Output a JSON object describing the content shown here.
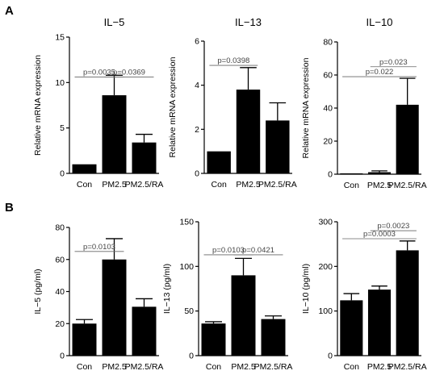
{
  "panel_letters": [
    "A",
    "B"
  ],
  "chart_data": [
    {
      "type": "bar",
      "title": "IL−5",
      "ylabel": "Relative mRNA expression",
      "categories": [
        "Con",
        "PM2.5",
        "PM2.5/RA"
      ],
      "values": [
        1.0,
        8.6,
        3.4
      ],
      "errors": [
        0.0,
        2.2,
        0.9
      ],
      "ylim": [
        0,
        15
      ],
      "yticks": [
        "0",
        "5",
        "10",
        "15"
      ],
      "annotations": [
        {
          "text": "p=0.0035",
          "from": "Con",
          "to": "PM2.5",
          "level": 10.6
        },
        {
          "text": "p=0.0369",
          "from": "PM2.5",
          "to": "PM2.5/RA",
          "level": 10.6
        }
      ]
    },
    {
      "type": "bar",
      "title": "IL−13",
      "ylabel": "Relative mRNA expression",
      "categories": [
        "Con",
        "PM2.5",
        "PM2.5/RA"
      ],
      "values": [
        1.0,
        3.8,
        2.4
      ],
      "errors": [
        0.0,
        1.0,
        0.8
      ],
      "ylim": [
        0,
        6
      ],
      "yticks": [
        "0",
        "2",
        "4",
        "6"
      ],
      "annotations": [
        {
          "text": "p=0.0398",
          "from": "Con",
          "to": "PM2.5",
          "level": 4.9
        }
      ]
    },
    {
      "type": "bar",
      "title": "IL−10",
      "ylabel": "Relative mRNA expression",
      "categories": [
        "Con",
        "PM2.5",
        "PM2.5/RA"
      ],
      "values": [
        0.5,
        1.2,
        42
      ],
      "errors": [
        0.0,
        0.8,
        16
      ],
      "ylim": [
        0,
        80
      ],
      "yticks": [
        "0",
        "20",
        "40",
        "60",
        "80"
      ],
      "annotations": [
        {
          "text": "p=0.022",
          "from": "Con",
          "to": "PM2.5/RA",
          "level": 59
        },
        {
          "text": "p=0.023",
          "from": "PM2.5",
          "to": "PM2.5/RA",
          "level": 65
        }
      ]
    },
    {
      "type": "bar",
      "title": "",
      "ylabel": "IL−5 (pg/ml)",
      "categories": [
        "Con",
        "PM2.5",
        "PM2.5/RA"
      ],
      "values": [
        20,
        60,
        30.5
      ],
      "errors": [
        2.5,
        13,
        5
      ],
      "ylim": [
        0,
        80
      ],
      "yticks": [
        "0",
        "20",
        "40",
        "60",
        "80"
      ],
      "annotations": [
        {
          "text": "p=0.0103",
          "from": "Con",
          "to": "PM2.5",
          "level": 65
        }
      ]
    },
    {
      "type": "bar",
      "title": "",
      "ylabel": "IL−13 (pg/ml)",
      "categories": [
        "Con",
        "PM2.5",
        "PM2.5/RA"
      ],
      "values": [
        36,
        90,
        41
      ],
      "errors": [
        2,
        19,
        3.5
      ],
      "ylim": [
        0,
        150
      ],
      "yticks": [
        "0",
        "50",
        "100",
        "150"
      ],
      "annotations": [
        {
          "text": "p=0.0103",
          "from": "Con",
          "to": "PM2.5",
          "level": 113
        },
        {
          "text": "p=0.0421",
          "from": "PM2.5",
          "to": "PM2.5/RA",
          "level": 113
        }
      ]
    },
    {
      "type": "bar",
      "title": "",
      "ylabel": "IL−10 (pg/ml)",
      "categories": [
        "Con",
        "PM2.5",
        "PM2.5/RA"
      ],
      "values": [
        124,
        148,
        236
      ],
      "errors": [
        15,
        8,
        21
      ],
      "ylim": [
        0,
        300
      ],
      "yticks": [
        "0",
        "100",
        "200",
        "300"
      ],
      "annotations": [
        {
          "text": "p=0.0003",
          "from": "Con",
          "to": "PM2.5/RA",
          "level": 262
        },
        {
          "text": "p=0.0023",
          "from": "PM2.5",
          "to": "PM2.5/RA",
          "level": 280
        }
      ]
    }
  ]
}
